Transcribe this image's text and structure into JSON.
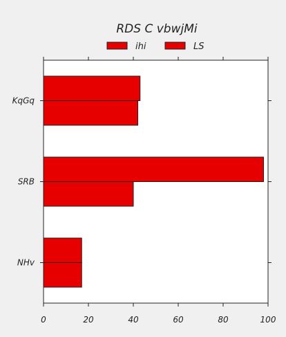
{
  "chart_data": {
    "type": "bar",
    "orientation": "horizontal",
    "title": "RDS C vbwjMi",
    "xlabel": "",
    "ylabel": "",
    "categories": [
      "KqGq",
      "SRB",
      "NHv"
    ],
    "series": [
      {
        "name": "ihi",
        "values": [
          43,
          98,
          17
        ],
        "color": "#e60000"
      },
      {
        "name": "LS",
        "values": [
          42,
          40,
          17
        ],
        "color": "#e60000"
      }
    ],
    "xlim": [
      0,
      100
    ],
    "xticks": [
      "0",
      "20",
      "40",
      "60",
      "80",
      "100"
    ],
    "grid": false,
    "legend_position": "top"
  }
}
